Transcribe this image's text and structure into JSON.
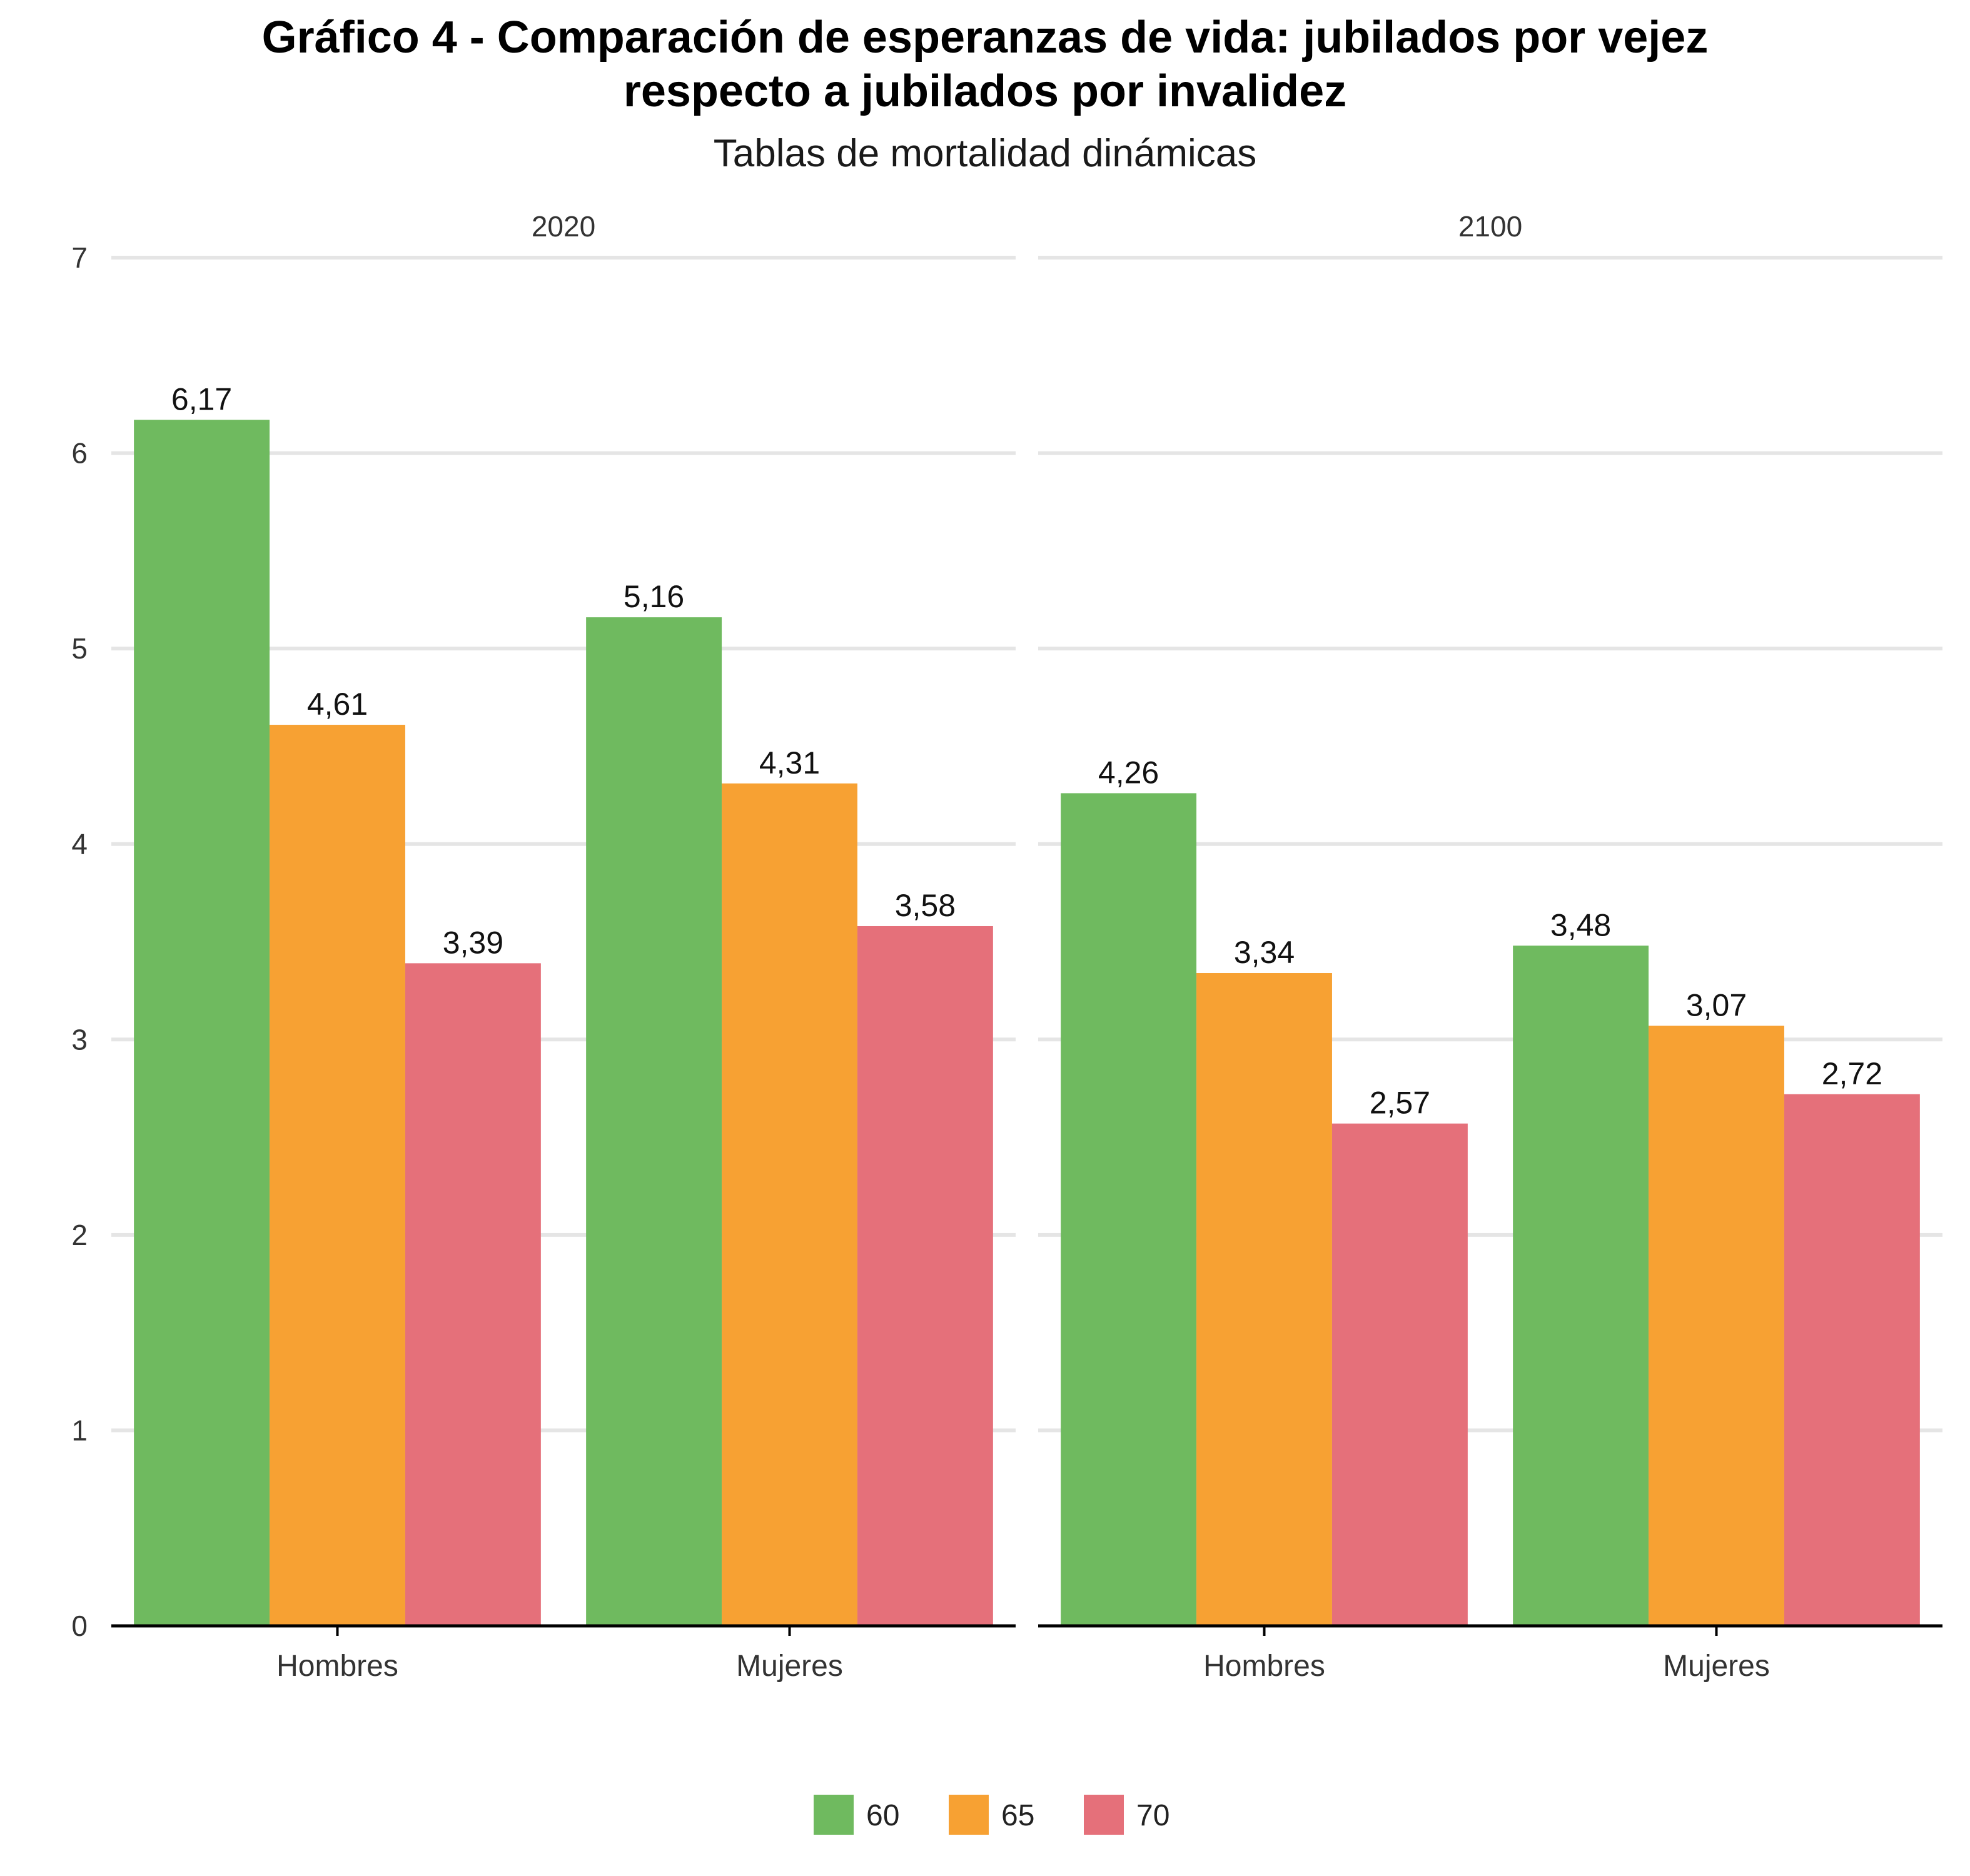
{
  "chart_data": {
    "type": "bar",
    "title_line1": "Gráfico 4 - Comparación de esperanzas de vida: jubilados por vejez",
    "title_line2": "respecto a jubilados por invalidez",
    "subtitle": "Tablas de mortalidad dinámicas",
    "xlabel": "",
    "ylabel": "",
    "ylim": [
      0,
      7
    ],
    "y_ticks": [
      0,
      1,
      2,
      3,
      4,
      5,
      6,
      7
    ],
    "grid": true,
    "legend_position": "bottom",
    "categories": [
      "Hombres",
      "Mujeres"
    ],
    "series_colors": [
      "#6fba5f",
      "#f7a133",
      "#e5707a"
    ],
    "legend": [
      "60",
      "65",
      "70"
    ],
    "facets": [
      {
        "label": "2020",
        "series": [
          {
            "name": "60",
            "values": [
              6.17,
              5.16
            ],
            "labels": [
              "6,17",
              "5,16"
            ]
          },
          {
            "name": "65",
            "values": [
              4.61,
              4.31
            ],
            "labels": [
              "4,61",
              "4,31"
            ]
          },
          {
            "name": "70",
            "values": [
              3.39,
              3.58
            ],
            "labels": [
              "3,39",
              "3,58"
            ]
          }
        ]
      },
      {
        "label": "2100",
        "series": [
          {
            "name": "60",
            "values": [
              4.26,
              3.48
            ],
            "labels": [
              "4,26",
              "3,48"
            ]
          },
          {
            "name": "65",
            "values": [
              3.34,
              3.07
            ],
            "labels": [
              "3,34",
              "3,07"
            ]
          },
          {
            "name": "70",
            "values": [
              2.57,
              2.72
            ],
            "labels": [
              "2,57",
              "2,72"
            ]
          }
        ]
      }
    ]
  }
}
